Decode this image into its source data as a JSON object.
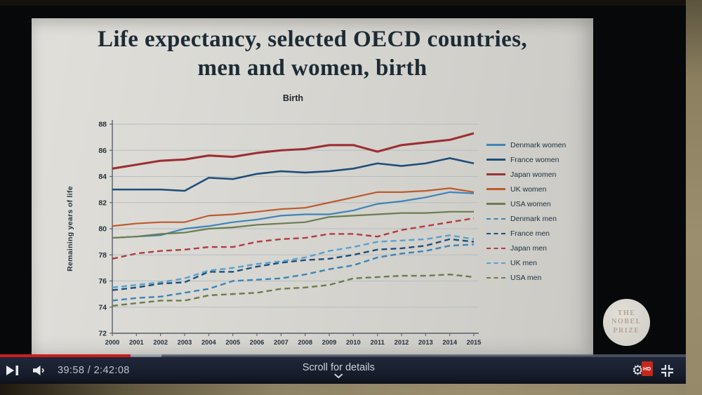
{
  "player": {
    "time_display": "39:58 / 2:42:08",
    "overlay_text": "Scroll for details",
    "hd_badge": "HD",
    "progress_percent": 19,
    "buffer_percent": 23.5,
    "progress_color": "#cf1d1d"
  },
  "slide": {
    "title_line1": "Life expectancy, selected OECD countries,",
    "title_line2": "men and women, birth",
    "logo": {
      "line1": "THE",
      "line2": "NOBEL",
      "line3": "PRIZE"
    }
  },
  "chart_data": {
    "type": "line",
    "title": "Birth",
    "xlabel": "",
    "ylabel": "Remaining years of life",
    "ylim": [
      72,
      88
    ],
    "yticks": [
      72,
      74,
      76,
      78,
      80,
      82,
      84,
      86,
      88
    ],
    "grid": "horizontal",
    "legend_position": "right",
    "x": [
      2000,
      2001,
      2002,
      2003,
      2004,
      2005,
      2006,
      2007,
      2008,
      2009,
      2010,
      2011,
      2012,
      2013,
      2014,
      2015
    ],
    "series": [
      {
        "name": "Denmark women",
        "color": "#3d85b8",
        "dash": false,
        "width": 2.2,
        "values": [
          79.3,
          79.4,
          79.5,
          80.0,
          80.2,
          80.5,
          80.7,
          81.0,
          81.1,
          81.1,
          81.4,
          81.9,
          82.1,
          82.4,
          82.8,
          82.7
        ]
      },
      {
        "name": "France women",
        "color": "#1f4e79",
        "dash": false,
        "width": 2.6,
        "values": [
          83.0,
          83.0,
          83.0,
          82.9,
          83.9,
          83.8,
          84.2,
          84.4,
          84.3,
          84.4,
          84.6,
          85.0,
          84.8,
          85.0,
          85.4,
          85.0
        ]
      },
      {
        "name": "Japan women",
        "color": "#9c2f33",
        "dash": false,
        "width": 3.1,
        "values": [
          84.6,
          84.9,
          85.2,
          85.3,
          85.6,
          85.5,
          85.8,
          86.0,
          86.1,
          86.4,
          86.4,
          85.9,
          86.4,
          86.6,
          86.8,
          87.3
        ]
      },
      {
        "name": "UK women",
        "color": "#bd5a2e",
        "dash": false,
        "width": 2.2,
        "values": [
          80.2,
          80.4,
          80.5,
          80.5,
          81.0,
          81.1,
          81.3,
          81.5,
          81.6,
          82.0,
          82.4,
          82.8,
          82.8,
          82.9,
          83.1,
          82.8
        ]
      },
      {
        "name": "USA women",
        "color": "#6b7c4f",
        "dash": false,
        "width": 2.2,
        "values": [
          79.3,
          79.4,
          79.6,
          79.7,
          80.0,
          80.1,
          80.3,
          80.4,
          80.5,
          80.9,
          81.0,
          81.1,
          81.2,
          81.2,
          81.3,
          81.3
        ]
      },
      {
        "name": "Denmark men",
        "color": "#3d85b8",
        "dash": true,
        "width": 2.4,
        "values": [
          74.5,
          74.7,
          74.8,
          75.1,
          75.4,
          76.0,
          76.1,
          76.2,
          76.5,
          76.9,
          77.2,
          77.8,
          78.1,
          78.3,
          78.7,
          78.8
        ]
      },
      {
        "name": "France men",
        "color": "#1f4e79",
        "dash": true,
        "width": 2.4,
        "values": [
          75.3,
          75.5,
          75.8,
          75.9,
          76.7,
          76.7,
          77.1,
          77.4,
          77.6,
          77.7,
          78.0,
          78.4,
          78.5,
          78.7,
          79.2,
          79.0
        ]
      },
      {
        "name": "Japan men",
        "color": "#b23a46",
        "dash": true,
        "width": 2.4,
        "values": [
          77.7,
          78.1,
          78.3,
          78.4,
          78.6,
          78.6,
          79.0,
          79.2,
          79.3,
          79.6,
          79.6,
          79.4,
          79.9,
          80.2,
          80.5,
          80.8
        ]
      },
      {
        "name": "UK men",
        "color": "#57a2d0",
        "dash": true,
        "width": 2.4,
        "values": [
          75.5,
          75.7,
          75.9,
          76.2,
          76.8,
          77.0,
          77.3,
          77.5,
          77.8,
          78.3,
          78.6,
          79.0,
          79.1,
          79.2,
          79.5,
          79.2
        ]
      },
      {
        "name": "USA men",
        "color": "#6b7c4f",
        "dash": true,
        "width": 2.4,
        "values": [
          74.1,
          74.3,
          74.5,
          74.5,
          74.9,
          75.0,
          75.1,
          75.4,
          75.5,
          75.7,
          76.2,
          76.3,
          76.4,
          76.4,
          76.5,
          76.3
        ]
      }
    ]
  }
}
